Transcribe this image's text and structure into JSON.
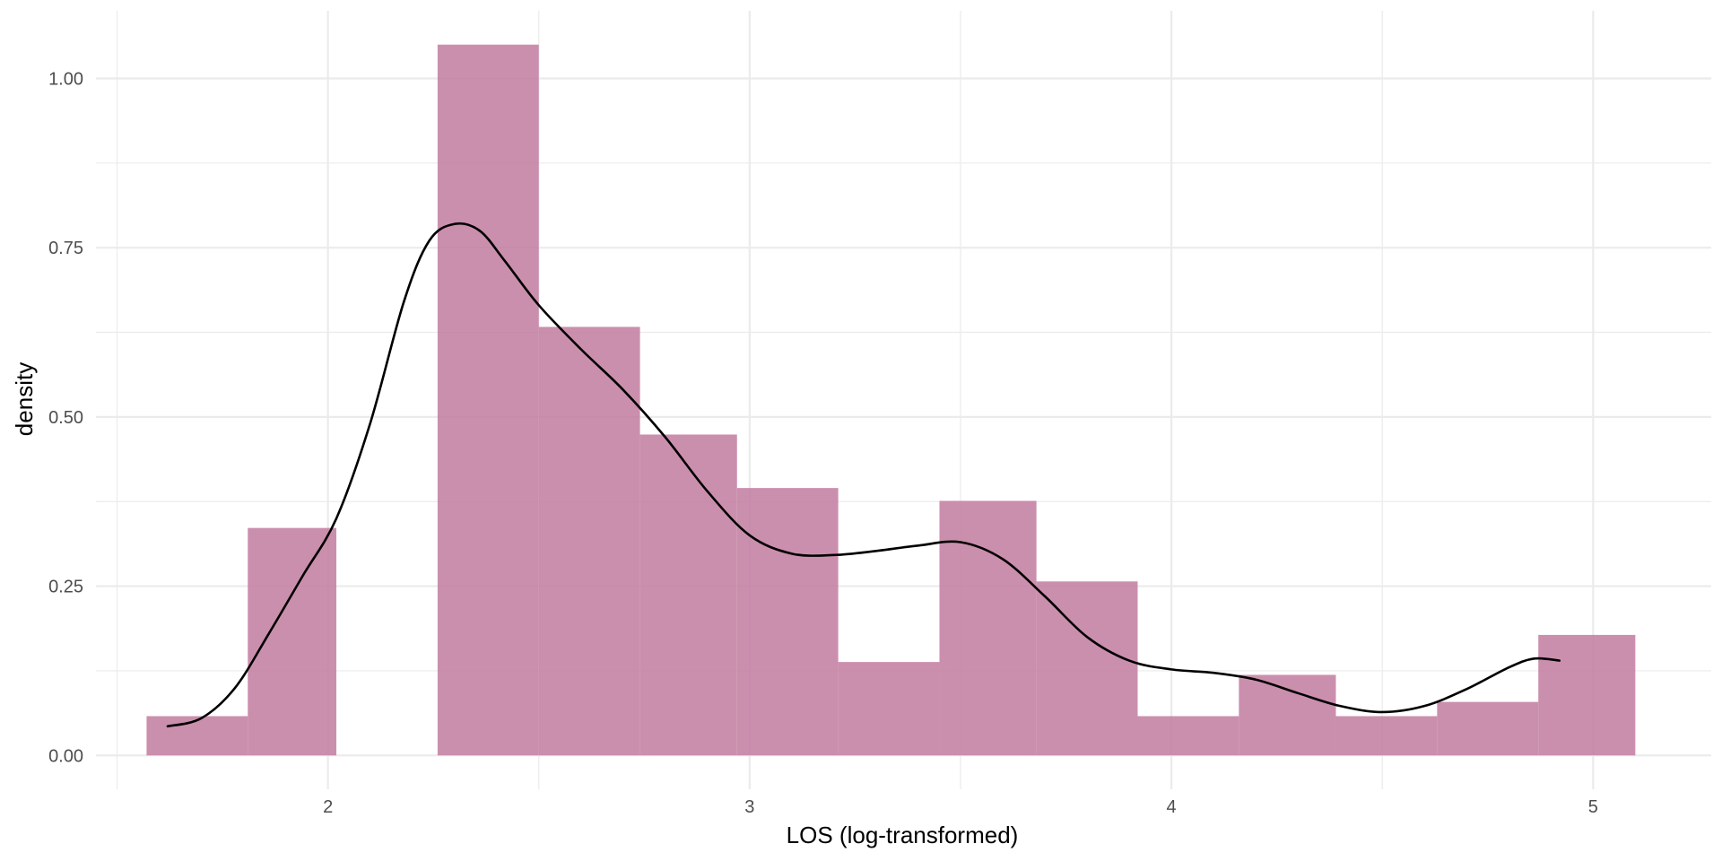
{
  "chart_data": {
    "type": "histogram",
    "xlabel": "LOS (log-transformed)",
    "ylabel": "density",
    "xlim": [
      1.45,
      5.28
    ],
    "ylim": [
      -0.05,
      1.1
    ],
    "x_ticks": [
      2,
      3,
      4,
      5
    ],
    "x_tick_labels": [
      "2",
      "3",
      "4",
      "5"
    ],
    "y_ticks": [
      0,
      0.25,
      0.5,
      0.75,
      1.0
    ],
    "y_tick_labels": [
      "0.00",
      "0.25",
      "0.50",
      "0.75",
      "1.00"
    ],
    "grid": true,
    "bar_color": "#c27ba0",
    "line_color": "#000000",
    "bins": [
      {
        "x0": 1.57,
        "x1": 1.81,
        "density": 0.058
      },
      {
        "x0": 1.81,
        "x1": 2.02,
        "density": 0.336
      },
      {
        "x0": 2.02,
        "x1": 2.26,
        "density": 0.0
      },
      {
        "x0": 2.26,
        "x1": 2.5,
        "density": 1.05
      },
      {
        "x0": 2.5,
        "x1": 2.74,
        "density": 0.633
      },
      {
        "x0": 2.74,
        "x1": 2.97,
        "density": 0.474
      },
      {
        "x0": 2.97,
        "x1": 3.21,
        "density": 0.395
      },
      {
        "x0": 3.21,
        "x1": 3.45,
        "density": 0.138
      },
      {
        "x0": 3.45,
        "x1": 3.68,
        "density": 0.376
      },
      {
        "x0": 3.68,
        "x1": 3.92,
        "density": 0.257
      },
      {
        "x0": 3.92,
        "x1": 4.16,
        "density": 0.058
      },
      {
        "x0": 4.16,
        "x1": 4.39,
        "density": 0.119
      },
      {
        "x0": 4.39,
        "x1": 4.63,
        "density": 0.058
      },
      {
        "x0": 4.63,
        "x1": 4.87,
        "density": 0.079
      },
      {
        "x0": 4.87,
        "x1": 5.1,
        "density": 0.178
      }
    ],
    "density_curve": {
      "x": [
        1.62,
        1.7,
        1.78,
        1.86,
        1.94,
        2.02,
        2.1,
        2.18,
        2.24,
        2.3,
        2.36,
        2.42,
        2.5,
        2.6,
        2.7,
        2.8,
        2.9,
        3.0,
        3.1,
        3.2,
        3.3,
        3.4,
        3.5,
        3.6,
        3.7,
        3.8,
        3.9,
        4.0,
        4.1,
        4.2,
        4.3,
        4.4,
        4.5,
        4.6,
        4.7,
        4.8,
        4.86,
        4.92
      ],
      "y": [
        0.043,
        0.055,
        0.1,
        0.18,
        0.265,
        0.35,
        0.49,
        0.67,
        0.76,
        0.785,
        0.775,
        0.73,
        0.665,
        0.6,
        0.54,
        0.47,
        0.39,
        0.325,
        0.298,
        0.296,
        0.302,
        0.31,
        0.315,
        0.29,
        0.235,
        0.175,
        0.14,
        0.127,
        0.122,
        0.112,
        0.092,
        0.073,
        0.064,
        0.073,
        0.098,
        0.13,
        0.143,
        0.14
      ]
    }
  }
}
